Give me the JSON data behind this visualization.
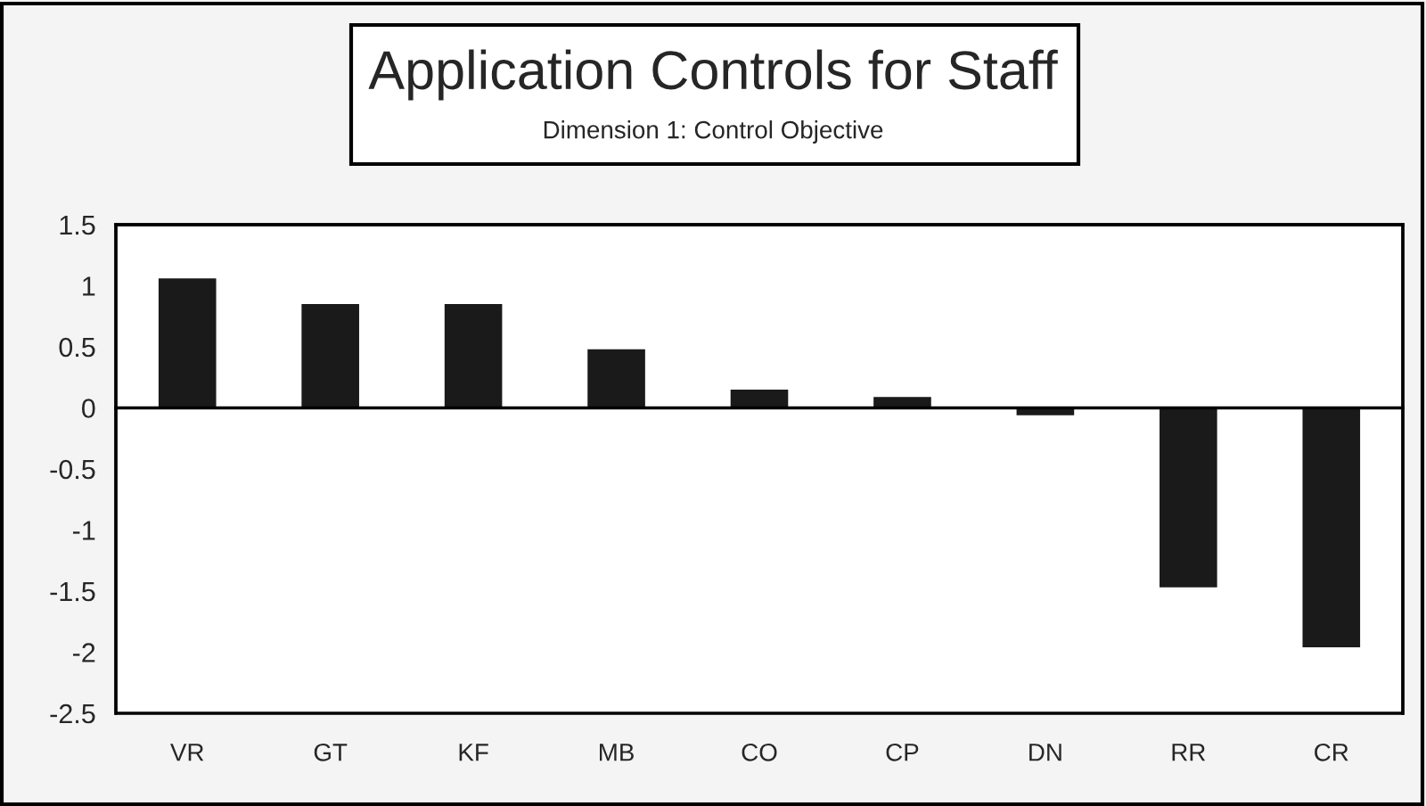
{
  "chart_data": {
    "type": "bar",
    "title": "Application Controls for Staff",
    "subtitle": "Dimension 1: Control Objective",
    "categories": [
      "VR",
      "GT",
      "KF",
      "MB",
      "CO",
      "CP",
      "DN",
      "RR",
      "CR"
    ],
    "values": [
      1.07,
      0.86,
      0.86,
      0.49,
      0.16,
      0.1,
      -0.07,
      -1.48,
      -1.97
    ],
    "color": "#1a1a1a",
    "ylim": [
      -2.5,
      1.5
    ],
    "yticks": [
      1.5,
      1,
      0.5,
      0,
      {
        "value": -0.5,
        "label": "-0.5"
      },
      {
        "value": -1,
        "label": "-1"
      },
      {
        "value": -1.5,
        "label": "-1.5"
      },
      {
        "value": -2,
        "label": "-2"
      },
      {
        "value": -2.5,
        "label": "-2.5"
      }
    ],
    "legend": false
  }
}
